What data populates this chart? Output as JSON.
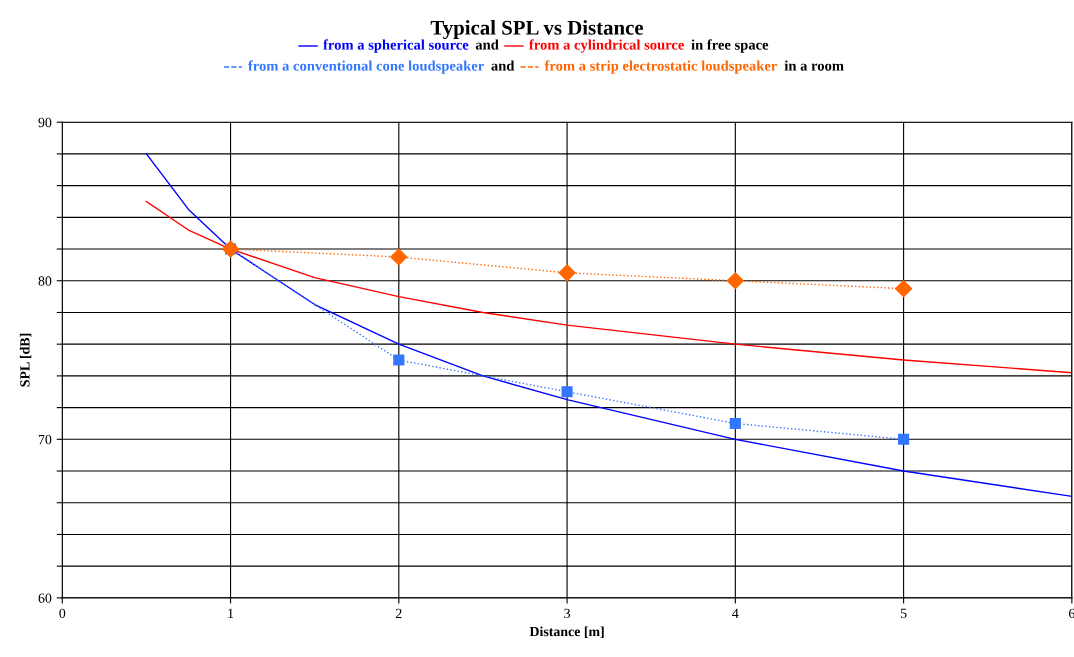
{
  "chart_data": {
    "type": "line",
    "title": "Typical SPL vs Distance",
    "xlabel": "Distance [m]",
    "ylabel": "SPL [dB]",
    "annotations": [
      "and",
      "in free space",
      "and",
      "in a room"
    ],
    "series": [
      {
        "name": "from a spherical source",
        "color": "#0000ff",
        "marker": "none",
        "line_style": "solid",
        "x": [
          0.5,
          0.75,
          1,
          1.5,
          2,
          2.5,
          3,
          4,
          5,
          6
        ],
        "values": [
          88,
          84.5,
          82,
          78.5,
          76,
          74,
          72.5,
          70,
          68,
          66.4
        ]
      },
      {
        "name": "from a cylindrical source",
        "color": "#ff0000",
        "marker": "none",
        "line_style": "solid",
        "x": [
          0.5,
          0.75,
          1,
          1.5,
          2,
          2.5,
          3,
          4,
          5,
          6
        ],
        "values": [
          85,
          83.2,
          82,
          80.2,
          79,
          78,
          77.2,
          76,
          75,
          74.2
        ]
      },
      {
        "name": "from a conventional cone loudspeaker",
        "color": "#3377ff",
        "marker": "square",
        "line_style": "dotted",
        "x": [
          1,
          2,
          3,
          4,
          5
        ],
        "values": [
          82,
          75,
          73,
          71,
          70
        ]
      },
      {
        "name": "from a strip electrostatic loudspeaker",
        "color": "#ff6600",
        "marker": "diamond",
        "line_style": "dotted",
        "x": [
          1,
          2,
          3,
          4,
          5
        ],
        "values": [
          82,
          81.5,
          80.5,
          80,
          79.5
        ]
      }
    ],
    "xlim": [
      0,
      6
    ],
    "xticks": [
      0,
      1,
      2,
      3,
      4,
      5,
      6
    ],
    "ylim": [
      60,
      90
    ],
    "yticks": [
      60,
      {
        "value": 62,
        "label": null
      },
      {
        "value": 64,
        "label": null
      },
      {
        "value": 66,
        "label": null
      },
      {
        "value": 68,
        "label": null
      },
      70,
      {
        "value": 72,
        "label": null
      },
      {
        "value": 74,
        "label": null
      },
      {
        "value": 76,
        "label": null
      },
      {
        "value": 78,
        "label": null
      },
      80,
      {
        "value": 82,
        "label": null
      },
      {
        "value": 84,
        "label": null
      },
      {
        "value": 86,
        "label": null
      },
      {
        "value": 88,
        "label": null
      },
      90
    ],
    "grid": true,
    "legend": "top"
  }
}
